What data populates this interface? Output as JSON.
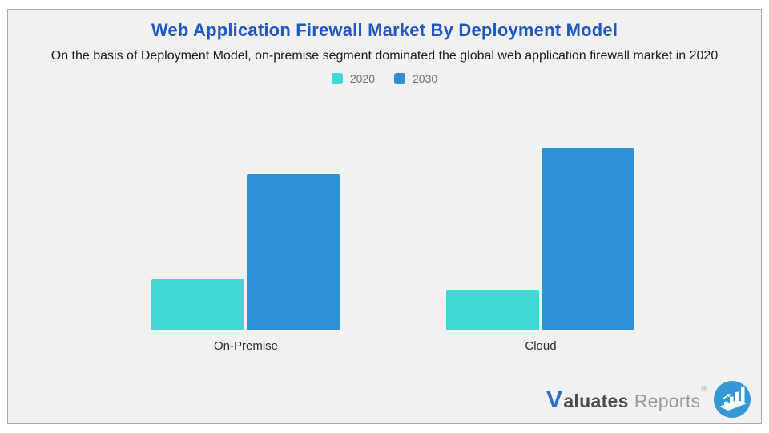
{
  "header": {
    "title": "Web Application Firewall Market By Deployment Model",
    "subtitle": "On the basis of Deployment Model, on-premise segment dominated the global web application firewall market in 2020",
    "title_color": "#2057c5"
  },
  "chart_data": {
    "type": "bar",
    "categories": [
      "On-Premise",
      "Cloud"
    ],
    "series": [
      {
        "name": "2020",
        "color": "#3fd8d2",
        "values": [
          28,
          22
        ]
      },
      {
        "name": "2030",
        "color": "#2e90d7",
        "values": [
          86,
          100
        ]
      }
    ],
    "title": "Web Application Firewall Market By Deployment Model",
    "xlabel": "",
    "ylabel": "",
    "value_scale": "relative (no value axis or data labels shown; 100 = tallest bar, Cloud 2030)",
    "legend_position": "top-center",
    "grid": false,
    "axes_shown": false
  },
  "branding": {
    "logo_v": "V",
    "logo_aluates": "aluates",
    "logo_reports": "Reports",
    "registered_mark": "®",
    "icon_circle_color": "#3598d4"
  },
  "colors": {
    "card_background": "#f1f1f2",
    "card_border": "#a9a9ab",
    "series_2020": "#3fd8d2",
    "series_2030": "#2e90d7",
    "legend_text": "#6f6f6f",
    "subtitle_text": "#1b1b1b",
    "category_label_text": "#2d2d2d"
  }
}
